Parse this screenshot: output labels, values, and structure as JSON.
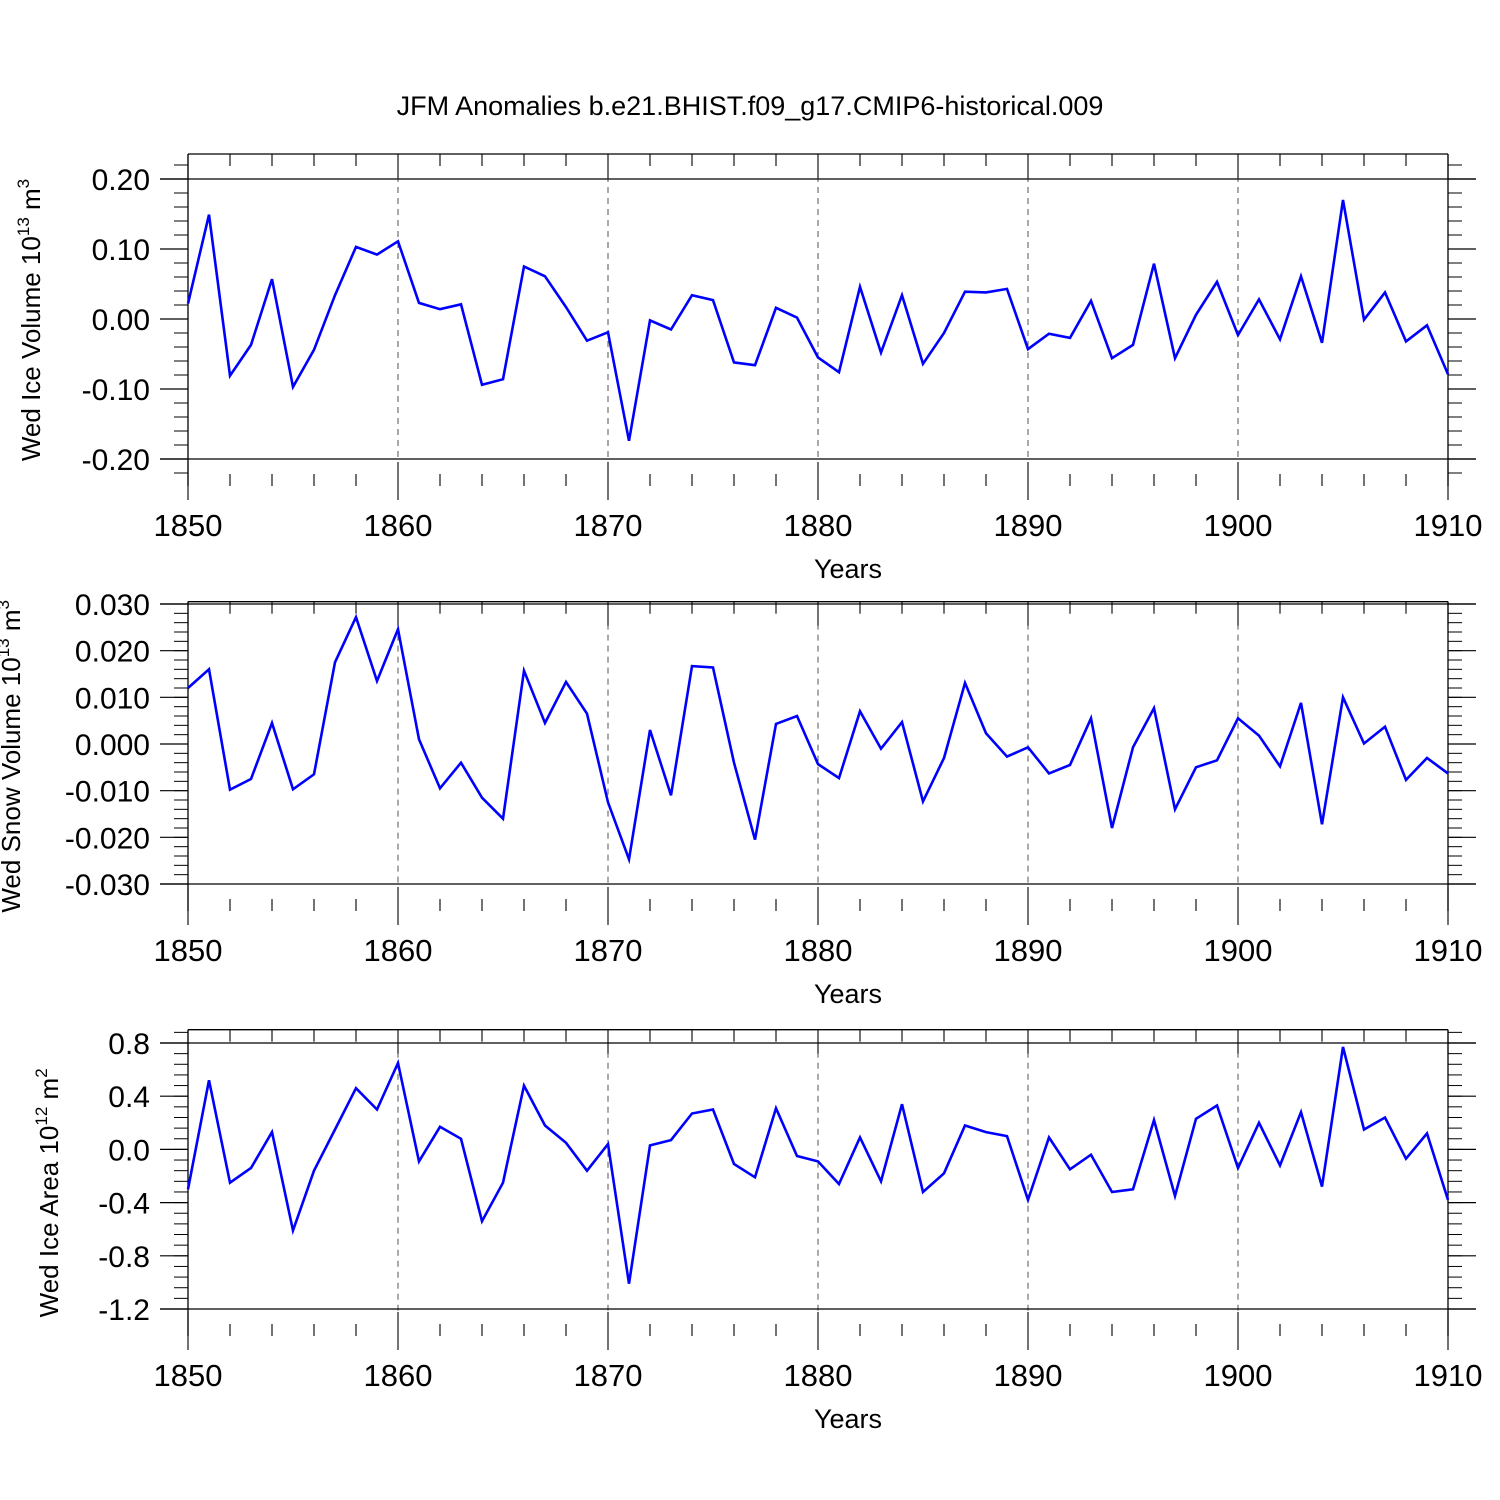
{
  "title": "JFM Anomalies b.e21.BHIST.f09_g17.CMIP6-historical.009",
  "colors": {
    "series": "#0000ff",
    "axis": "#000000",
    "grid": "#555555"
  },
  "chart_data": [
    {
      "type": "line",
      "ylabel": "Wed Ice Volume 10",
      "ylabel_exp": "13",
      "ylabel_unit": "m",
      "ylabel_unit_exp": "3",
      "xlabel": "Years",
      "xlim": [
        1850,
        1910
      ],
      "ylim": [
        -0.24,
        0.24
      ],
      "yticks": [
        0.2,
        0.1,
        0.0,
        -0.1,
        -0.2
      ],
      "ytick_labels": [
        "0.20",
        "0.10",
        "0.00",
        "-0.10",
        "-0.20"
      ],
      "xticks": [
        1850,
        1860,
        1870,
        1880,
        1890,
        1900,
        1910
      ],
      "xtick_labels": [
        "1850",
        "1860",
        "1870",
        "1880",
        "1890",
        "1900",
        "1910"
      ],
      "grid_x": [
        1860,
        1870,
        1880,
        1890,
        1900
      ],
      "x": [
        1850,
        1851,
        1852,
        1853,
        1854,
        1855,
        1856,
        1857,
        1858,
        1859,
        1860,
        1861,
        1862,
        1863,
        1864,
        1865,
        1866,
        1867,
        1868,
        1869,
        1870,
        1871,
        1872,
        1873,
        1874,
        1875,
        1876,
        1877,
        1878,
        1879,
        1880,
        1881,
        1882,
        1883,
        1884,
        1885,
        1886,
        1887,
        1888,
        1889,
        1890,
        1891,
        1892,
        1893,
        1894,
        1895,
        1896,
        1897,
        1898,
        1899,
        1900,
        1901,
        1902,
        1903,
        1904,
        1905,
        1906,
        1907,
        1908,
        1909,
        1910
      ],
      "values": [
        0.022,
        0.149,
        -0.081,
        -0.037,
        0.057,
        -0.097,
        -0.044,
        0.034,
        0.103,
        0.092,
        0.111,
        0.023,
        0.014,
        0.021,
        -0.094,
        -0.086,
        0.075,
        0.061,
        0.017,
        -0.031,
        -0.019,
        -0.174,
        -0.002,
        -0.015,
        0.034,
        0.027,
        -0.062,
        -0.066,
        0.016,
        0.002,
        -0.055,
        -0.076,
        0.046,
        -0.048,
        0.034,
        -0.064,
        -0.02,
        0.039,
        0.038,
        0.043,
        -0.043,
        -0.021,
        -0.027,
        0.026,
        -0.056,
        -0.037,
        0.079,
        -0.056,
        0.006,
        0.053,
        -0.023,
        0.028,
        -0.029,
        0.061,
        -0.034,
        0.17,
        -0.001,
        0.038,
        -0.032,
        -0.009,
        -0.079
      ]
    },
    {
      "type": "line",
      "ylabel": "Wed Snow Volume 10",
      "ylabel_exp": "13",
      "ylabel_unit": "m",
      "ylabel_unit_exp": "3",
      "xlabel": "Years",
      "xlim": [
        1850,
        1910
      ],
      "ylim": [
        -0.0305,
        0.0305
      ],
      "yticks": [
        0.03,
        0.02,
        0.01,
        0.0,
        -0.01,
        -0.02,
        -0.03
      ],
      "ytick_labels": [
        "0.030",
        "0.020",
        "0.010",
        "0.000",
        "-0.010",
        "-0.020",
        "-0.030"
      ],
      "xticks": [
        1850,
        1860,
        1870,
        1880,
        1890,
        1900,
        1910
      ],
      "xtick_labels": [
        "1850",
        "1860",
        "1870",
        "1880",
        "1890",
        "1900",
        "1910"
      ],
      "grid_x": [
        1860,
        1870,
        1880,
        1890,
        1900
      ],
      "x": [
        1850,
        1851,
        1852,
        1853,
        1854,
        1855,
        1856,
        1857,
        1858,
        1859,
        1860,
        1861,
        1862,
        1863,
        1864,
        1865,
        1866,
        1867,
        1868,
        1869,
        1870,
        1871,
        1872,
        1873,
        1874,
        1875,
        1876,
        1877,
        1878,
        1879,
        1880,
        1881,
        1882,
        1883,
        1884,
        1885,
        1886,
        1887,
        1888,
        1889,
        1890,
        1891,
        1892,
        1893,
        1894,
        1895,
        1896,
        1897,
        1898,
        1899,
        1900,
        1901,
        1902,
        1903,
        1904,
        1905,
        1906,
        1907,
        1908,
        1909,
        1910
      ],
      "values": [
        0.012,
        0.016,
        -0.0098,
        -0.0075,
        0.0045,
        -0.0097,
        -0.0065,
        0.0175,
        0.0272,
        0.0135,
        0.0246,
        0.001,
        -0.0095,
        -0.004,
        -0.0115,
        -0.016,
        0.0157,
        0.0045,
        0.0133,
        0.0065,
        -0.0125,
        -0.0247,
        0.003,
        -0.011,
        0.0167,
        0.0164,
        -0.004,
        -0.0205,
        0.0043,
        0.006,
        -0.0043,
        -0.0073,
        0.007,
        -0.001,
        0.0047,
        -0.0123,
        -0.003,
        0.0131,
        0.0023,
        -0.0027,
        -0.0007,
        -0.0063,
        -0.0045,
        0.0055,
        -0.018,
        -0.0007,
        0.0077,
        -0.014,
        -0.005,
        -0.0035,
        0.0055,
        0.0018,
        -0.0048,
        0.0088,
        -0.0172,
        0.01,
        0.0001,
        0.0037,
        -0.0077,
        -0.003,
        -0.0063
      ]
    },
    {
      "type": "line",
      "ylabel": "Wed Ice Area 10",
      "ylabel_exp": "12",
      "ylabel_unit": "m",
      "ylabel_unit_exp": "2",
      "xlabel": "Years",
      "xlim": [
        1850,
        1910
      ],
      "ylim": [
        -1.2,
        0.9
      ],
      "yticks": [
        0.8,
        0.4,
        0.0,
        -0.4,
        -0.8,
        -1.2
      ],
      "ytick_labels": [
        "0.8",
        "0.4",
        "0.0",
        "-0.4",
        "-0.8",
        "-1.2"
      ],
      "xticks": [
        1850,
        1860,
        1870,
        1880,
        1890,
        1900,
        1910
      ],
      "xtick_labels": [
        "1850",
        "1860",
        "1870",
        "1880",
        "1890",
        "1900",
        "1910"
      ],
      "grid_x": [
        1860,
        1870,
        1880,
        1890,
        1900
      ],
      "x": [
        1850,
        1851,
        1852,
        1853,
        1854,
        1855,
        1856,
        1857,
        1858,
        1859,
        1860,
        1861,
        1862,
        1863,
        1864,
        1865,
        1866,
        1867,
        1868,
        1869,
        1870,
        1871,
        1872,
        1873,
        1874,
        1875,
        1876,
        1877,
        1878,
        1879,
        1880,
        1881,
        1882,
        1883,
        1884,
        1885,
        1886,
        1887,
        1888,
        1889,
        1890,
        1891,
        1892,
        1893,
        1894,
        1895,
        1896,
        1897,
        1898,
        1899,
        1900,
        1901,
        1902,
        1903,
        1904,
        1905,
        1906,
        1907,
        1908,
        1909,
        1910
      ],
      "values": [
        -0.3,
        0.52,
        -0.25,
        -0.14,
        0.13,
        -0.61,
        -0.16,
        0.15,
        0.46,
        0.3,
        0.65,
        -0.09,
        0.17,
        0.08,
        -0.54,
        -0.25,
        0.48,
        0.18,
        0.05,
        -0.16,
        0.04,
        -1.01,
        0.03,
        0.07,
        0.27,
        0.3,
        -0.11,
        -0.21,
        0.31,
        -0.05,
        -0.09,
        -0.26,
        0.09,
        -0.24,
        0.34,
        -0.32,
        -0.18,
        0.18,
        0.13,
        0.1,
        -0.38,
        0.09,
        -0.15,
        -0.04,
        -0.32,
        -0.3,
        0.22,
        -0.35,
        0.23,
        0.33,
        -0.14,
        0.2,
        -0.12,
        0.28,
        -0.28,
        0.77,
        0.15,
        0.24,
        -0.07,
        0.12,
        -0.38
      ]
    }
  ]
}
